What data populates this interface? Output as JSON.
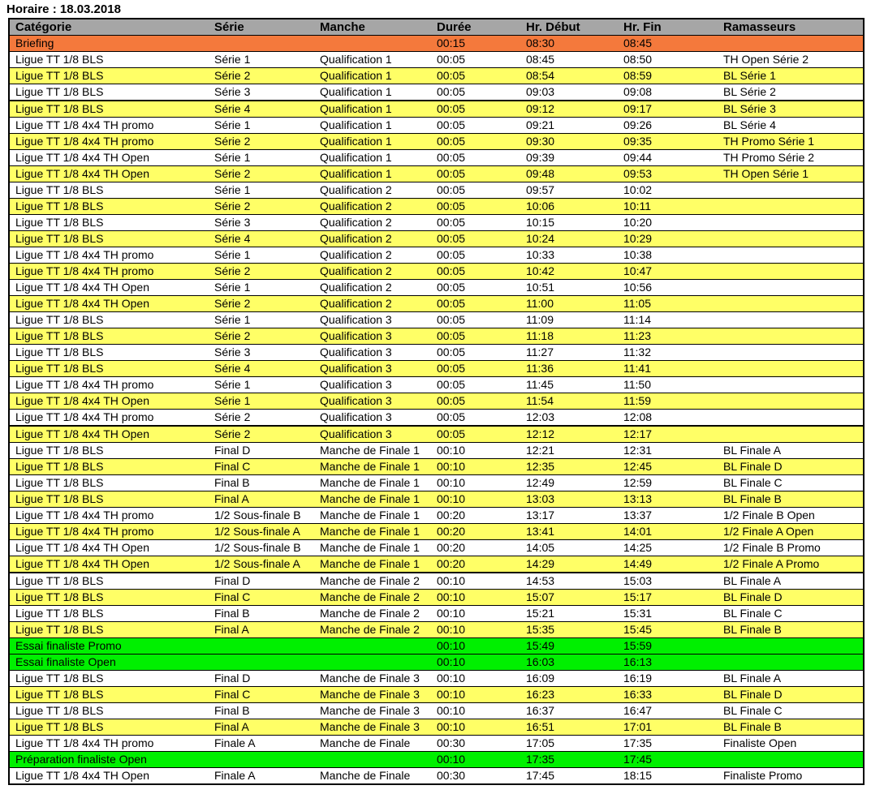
{
  "page_title": "Horaire : 18.03.2018",
  "colors": {
    "header_gray": "#A6A6A6",
    "row_yellow": "#FFFF66",
    "row_green": "#00F000",
    "row_orange": "#F4793C",
    "border_black": "#000000"
  },
  "table": {
    "columns": [
      "Catégorie",
      "Série",
      "Manche",
      "Durée",
      "Hr. Début",
      "Hr. Fin",
      "Ramasseurs"
    ],
    "fields": [
      "categorie",
      "serie",
      "manche",
      "duree",
      "debut",
      "fin",
      "ramasseurs"
    ],
    "rows": [
      {
        "color": "orange",
        "categorie": "Briefing",
        "serie": "",
        "manche": "",
        "duree": "00:15",
        "debut": "08:30",
        "fin": "08:45",
        "ramasseurs": ""
      },
      {
        "color": "white",
        "categorie": "Ligue TT 1/8 BLS",
        "serie": "Série 1",
        "manche": "Qualification 1",
        "duree": "00:05",
        "debut": "08:45",
        "fin": "08:50",
        "ramasseurs": "TH Open Série 2"
      },
      {
        "color": "yellow",
        "categorie": "Ligue TT 1/8 BLS",
        "serie": "Série 2",
        "manche": "Qualification 1",
        "duree": "00:05",
        "debut": "08:54",
        "fin": "08:59",
        "ramasseurs": "BL Série 1"
      },
      {
        "color": "white",
        "categorie": "Ligue TT 1/8 BLS",
        "serie": "Série 3",
        "manche": "Qualification 1",
        "duree": "00:05",
        "debut": "09:03",
        "fin": "09:08",
        "ramasseurs": "BL Série 2"
      },
      {
        "color": "yellow",
        "thick_top": true,
        "categorie": "Ligue TT 1/8 BLS",
        "serie": "Série 4",
        "manche": "Qualification 1",
        "duree": "00:05",
        "debut": "09:12",
        "fin": "09:17",
        "ramasseurs": "BL Série 3"
      },
      {
        "color": "white",
        "categorie": "Ligue TT 1/8 4x4 TH promo",
        "serie": "Série 1",
        "manche": "Qualification 1",
        "duree": "00:05",
        "debut": "09:21",
        "fin": "09:26",
        "ramasseurs": "BL Série 4"
      },
      {
        "color": "yellow",
        "categorie": "Ligue TT 1/8 4x4 TH promo",
        "serie": "Série 2",
        "manche": "Qualification 1",
        "duree": "00:05",
        "debut": "09:30",
        "fin": "09:35",
        "ramasseurs": "TH Promo Série 1"
      },
      {
        "color": "white",
        "categorie": "Ligue TT 1/8 4x4 TH Open",
        "serie": "Série 1",
        "manche": "Qualification 1",
        "duree": "00:05",
        "debut": "09:39",
        "fin": "09:44",
        "ramasseurs": "TH Promo Série 2"
      },
      {
        "color": "yellow",
        "categorie": "Ligue TT 1/8 4x4 TH Open",
        "serie": "Série 2",
        "manche": "Qualification 1",
        "duree": "00:05",
        "debut": "09:48",
        "fin": "09:53",
        "ramasseurs": "TH Open Série 1"
      },
      {
        "color": "white",
        "categorie": "Ligue TT 1/8 BLS",
        "serie": "Série 1",
        "manche": "Qualification 2",
        "duree": "00:05",
        "debut": "09:57",
        "fin": "10:02",
        "ramasseurs": ""
      },
      {
        "color": "yellow",
        "categorie": "Ligue TT 1/8 BLS",
        "serie": "Série 2",
        "manche": "Qualification 2",
        "duree": "00:05",
        "debut": "10:06",
        "fin": "10:11",
        "ramasseurs": ""
      },
      {
        "color": "white",
        "categorie": "Ligue TT 1/8 BLS",
        "serie": "Série 3",
        "manche": "Qualification 2",
        "duree": "00:05",
        "debut": "10:15",
        "fin": "10:20",
        "ramasseurs": ""
      },
      {
        "color": "yellow",
        "categorie": "Ligue TT 1/8 BLS",
        "serie": "Série 4",
        "manche": "Qualification 2",
        "duree": "00:05",
        "debut": "10:24",
        "fin": "10:29",
        "ramasseurs": ""
      },
      {
        "color": "white",
        "categorie": "Ligue TT 1/8 4x4 TH promo",
        "serie": "Série 1",
        "manche": "Qualification 2",
        "duree": "00:05",
        "debut": "10:33",
        "fin": "10:38",
        "ramasseurs": ""
      },
      {
        "color": "yellow",
        "categorie": "Ligue TT 1/8 4x4 TH promo",
        "serie": "Série 2",
        "manche": "Qualification 2",
        "duree": "00:05",
        "debut": "10:42",
        "fin": "10:47",
        "ramasseurs": ""
      },
      {
        "color": "white",
        "categorie": "Ligue TT 1/8 4x4 TH Open",
        "serie": "Série 1",
        "manche": "Qualification 2",
        "duree": "00:05",
        "debut": "10:51",
        "fin": "10:56",
        "ramasseurs": ""
      },
      {
        "color": "yellow",
        "categorie": "Ligue TT 1/8 4x4 TH Open",
        "serie": "Série 2",
        "manche": "Qualification 2",
        "duree": "00:05",
        "debut": "11:00",
        "fin": "11:05",
        "ramasseurs": ""
      },
      {
        "color": "white",
        "categorie": "Ligue TT 1/8 BLS",
        "serie": "Série 1",
        "manche": "Qualification 3",
        "duree": "00:05",
        "debut": "11:09",
        "fin": "11:14",
        "ramasseurs": ""
      },
      {
        "color": "yellow",
        "categorie": "Ligue TT 1/8 BLS",
        "serie": "Série 2",
        "manche": "Qualification 3",
        "duree": "00:05",
        "debut": "11:18",
        "fin": "11:23",
        "ramasseurs": ""
      },
      {
        "color": "white",
        "categorie": "Ligue TT 1/8 BLS",
        "serie": "Série 3",
        "manche": "Qualification 3",
        "duree": "00:05",
        "debut": "11:27",
        "fin": "11:32",
        "ramasseurs": ""
      },
      {
        "color": "yellow",
        "categorie": "Ligue TT 1/8 BLS",
        "serie": "Série 4",
        "manche": "Qualification 3",
        "duree": "00:05",
        "debut": "11:36",
        "fin": "11:41",
        "ramasseurs": ""
      },
      {
        "color": "white",
        "categorie": "Ligue TT 1/8 4x4 TH promo",
        "serie": "Série 1",
        "manche": "Qualification 3",
        "duree": "00:05",
        "debut": "11:45",
        "fin": "11:50",
        "ramasseurs": ""
      },
      {
        "color": "yellow",
        "categorie": "Ligue TT 1/8 4x4 TH Open",
        "serie": "Série 1",
        "manche": "Qualification 3",
        "duree": "00:05",
        "debut": "11:54",
        "fin": "11:59",
        "ramasseurs": ""
      },
      {
        "color": "white",
        "categorie": "Ligue TT 1/8 4x4 TH promo",
        "serie": "Série 2",
        "manche": "Qualification 3",
        "duree": "00:05",
        "debut": "12:03",
        "fin": "12:08",
        "ramasseurs": ""
      },
      {
        "color": "yellow",
        "thick_top": true,
        "categorie": "Ligue TT 1/8 4x4 TH Open",
        "serie": "Série 2",
        "manche": "Qualification 3",
        "duree": "00:05",
        "debut": "12:12",
        "fin": "12:17",
        "ramasseurs": ""
      },
      {
        "color": "white",
        "categorie": "Ligue TT 1/8 BLS",
        "serie": "Final D",
        "manche": "Manche de Finale 1",
        "duree": "00:10",
        "debut": "12:21",
        "fin": "12:31",
        "ramasseurs": "BL Finale A"
      },
      {
        "color": "yellow",
        "categorie": "Ligue TT 1/8 BLS",
        "serie": "Final C",
        "manche": "Manche de Finale 1",
        "duree": "00:10",
        "debut": "12:35",
        "fin": "12:45",
        "ramasseurs": "BL Finale D"
      },
      {
        "color": "white",
        "categorie": "Ligue TT 1/8 BLS",
        "serie": "Final B",
        "manche": "Manche de Finale 1",
        "duree": "00:10",
        "debut": "12:49",
        "fin": "12:59",
        "ramasseurs": "BL Finale C"
      },
      {
        "color": "yellow",
        "categorie": "Ligue TT 1/8 BLS",
        "serie": "Final A",
        "manche": "Manche de Finale 1",
        "duree": "00:10",
        "debut": "13:03",
        "fin": "13:13",
        "ramasseurs": "BL Finale B"
      },
      {
        "color": "white",
        "categorie": "Ligue TT 1/8 4x4 TH promo",
        "serie": "1/2 Sous-finale B",
        "manche": "Manche de Finale 1",
        "duree": "00:20",
        "debut": "13:17",
        "fin": "13:37",
        "ramasseurs": "1/2 Finale B Open"
      },
      {
        "color": "yellow",
        "categorie": "Ligue TT 1/8 4x4 TH promo",
        "serie": "1/2 Sous-finale A",
        "manche": "Manche de Finale 1",
        "duree": "00:20",
        "debut": "13:41",
        "fin": "14:01",
        "ramasseurs": "1/2 Finale A Open"
      },
      {
        "color": "white",
        "categorie": "Ligue TT 1/8 4x4 TH Open",
        "serie": "1/2 Sous-finale B",
        "manche": "Manche de Finale 1",
        "duree": "00:20",
        "debut": "14:05",
        "fin": "14:25",
        "ramasseurs": "1/2 Finale B Promo"
      },
      {
        "color": "yellow",
        "categorie": "Ligue TT 1/8 4x4 TH Open",
        "serie": "1/2 Sous-finale A",
        "manche": "Manche de Finale 1",
        "duree": "00:20",
        "debut": "14:29",
        "fin": "14:49",
        "ramasseurs": "1/2 Finale A Promo"
      },
      {
        "color": "white",
        "thick_top": true,
        "categorie": "Ligue TT 1/8 BLS",
        "serie": "Final D",
        "manche": "Manche de Finale 2",
        "duree": "00:10",
        "debut": "14:53",
        "fin": "15:03",
        "ramasseurs": "BL Finale A"
      },
      {
        "color": "yellow",
        "categorie": "Ligue TT 1/8 BLS",
        "serie": "Final C",
        "manche": "Manche de Finale 2",
        "duree": "00:10",
        "debut": "15:07",
        "fin": "15:17",
        "ramasseurs": "BL Finale D"
      },
      {
        "color": "white",
        "categorie": "Ligue TT 1/8 BLS",
        "serie": "Final B",
        "manche": "Manche de Finale 2",
        "duree": "00:10",
        "debut": "15:21",
        "fin": "15:31",
        "ramasseurs": "BL Finale C"
      },
      {
        "color": "yellow",
        "categorie": "Ligue TT 1/8 BLS",
        "serie": "Final A",
        "manche": "Manche de Finale 2",
        "duree": "00:10",
        "debut": "15:35",
        "fin": "15:45",
        "ramasseurs": "BL Finale B"
      },
      {
        "color": "green",
        "categorie": "Essai finaliste Promo",
        "serie": "",
        "manche": "",
        "duree": "00:10",
        "debut": "15:49",
        "fin": "15:59",
        "ramasseurs": ""
      },
      {
        "color": "green",
        "categorie": "Essai finaliste Open",
        "serie": "",
        "manche": "",
        "duree": "00:10",
        "debut": "16:03",
        "fin": "16:13",
        "ramasseurs": ""
      },
      {
        "color": "white",
        "categorie": "Ligue TT 1/8 BLS",
        "serie": "Final D",
        "manche": "Manche de Finale 3",
        "duree": "00:10",
        "debut": "16:09",
        "fin": "16:19",
        "ramasseurs": "BL Finale A"
      },
      {
        "color": "yellow",
        "categorie": "Ligue TT 1/8 BLS",
        "serie": "Final C",
        "manche": "Manche de Finale 3",
        "duree": "00:10",
        "debut": "16:23",
        "fin": "16:33",
        "ramasseurs": "BL Finale D"
      },
      {
        "color": "white",
        "categorie": "Ligue TT 1/8 BLS",
        "serie": "Final B",
        "manche": "Manche de Finale 3",
        "duree": "00:10",
        "debut": "16:37",
        "fin": "16:47",
        "ramasseurs": "BL Finale C"
      },
      {
        "color": "yellow",
        "categorie": "Ligue TT 1/8 BLS",
        "serie": "Final A",
        "manche": "Manche de Finale 3",
        "duree": "00:10",
        "debut": "16:51",
        "fin": "17:01",
        "ramasseurs": "BL Finale B"
      },
      {
        "color": "white",
        "categorie": "Ligue TT 1/8 4x4 TH promo",
        "serie": "Finale A",
        "manche": "Manche de Finale",
        "duree": "00:30",
        "debut": "17:05",
        "fin": "17:35",
        "ramasseurs": "Finaliste Open"
      },
      {
        "color": "green",
        "categorie": "Préparation finaliste Open",
        "serie": "",
        "manche": "",
        "duree": "00:10",
        "debut": "17:35",
        "fin": "17:45",
        "ramasseurs": ""
      },
      {
        "color": "white",
        "categorie": "Ligue TT 1/8 4x4 TH Open",
        "serie": "Finale A",
        "manche": "Manche de Finale",
        "duree": "00:30",
        "debut": "17:45",
        "fin": "18:15",
        "ramasseurs": "Finaliste Promo"
      }
    ]
  }
}
